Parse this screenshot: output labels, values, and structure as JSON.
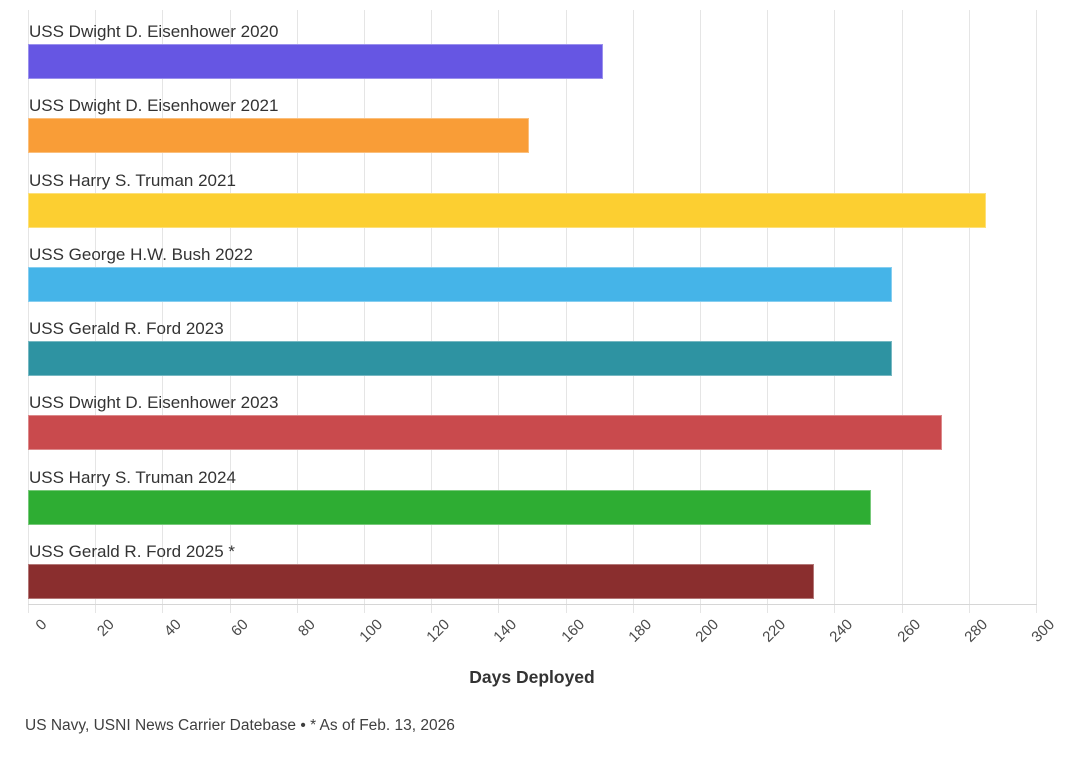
{
  "chart_data": {
    "type": "bar",
    "orientation": "horizontal",
    "title": "",
    "xlabel": "Days Deployed",
    "ylabel": "",
    "xlim": [
      0,
      300
    ],
    "xticks": [
      0,
      20,
      40,
      60,
      80,
      100,
      120,
      140,
      160,
      180,
      200,
      220,
      240,
      260,
      280,
      300
    ],
    "grid": true,
    "legend": "none",
    "categories": [
      "USS Dwight D. Eisenhower 2020",
      "USS Dwight D. Eisenhower 2021",
      "USS Harry S. Truman 2021",
      "USS George H.W. Bush 2022",
      "USS Gerald R. Ford 2023",
      "USS Dwight D. Eisenhower 2023",
      "USS Harry S. Truman 2024",
      "USS Gerald R. Ford 2025 *"
    ],
    "values": [
      171,
      149,
      285,
      257,
      257,
      272,
      251,
      234
    ],
    "colors": [
      "#6656e3",
      "#f99d37",
      "#fccf31",
      "#45b4e8",
      "#2e93a2",
      "#c94a4d",
      "#2ead33",
      "#8a2e2e"
    ],
    "gridline_color": "#e5e5e5",
    "axis_line_color": "#d6d6d6",
    "label_color": "#333333",
    "tick_label_color": "#4a4a4a",
    "source_note": "US Navy, USNI News Carrier Datebase • * As of Feb. 13, 2026"
  }
}
